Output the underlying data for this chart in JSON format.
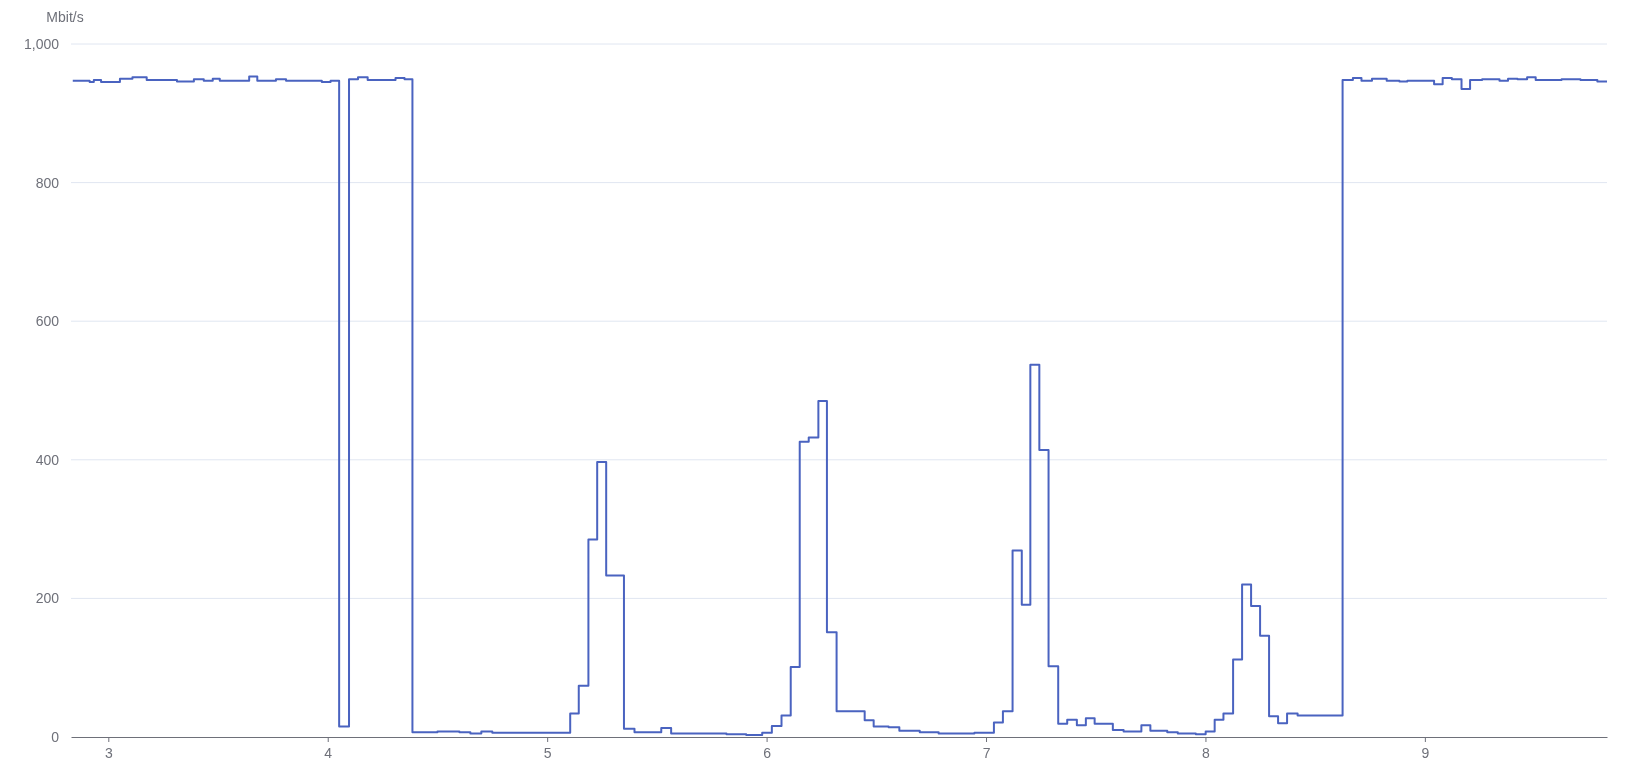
{
  "chart_data": {
    "type": "step",
    "ylabel": "Mbit/s",
    "xlim": [
      2.83,
      9.83
    ],
    "xticks": [
      3,
      4,
      5,
      6,
      7,
      8,
      9
    ],
    "ylim": [
      0,
      1000
    ],
    "yticks": [
      0,
      200,
      400,
      600,
      800,
      {
        "value": 1000,
        "label": "1,000"
      }
    ],
    "grid": "y",
    "marker": "none",
    "line_style": "solid",
    "series": [
      {
        "color": "#4a63c0",
        "x": [
          2.838,
          2.915,
          2.934,
          2.967,
          3.053,
          3.11,
          3.175,
          3.313,
          3.39,
          3.435,
          3.476,
          3.508,
          3.642,
          3.679,
          3.764,
          3.81,
          3.973,
          4.013,
          4.052,
          4.097,
          4.138,
          4.182,
          4.309,
          4.35,
          4.386,
          4.5,
          4.6,
          4.65,
          4.7,
          4.75,
          5.105,
          5.144,
          5.188,
          5.228,
          5.269,
          5.35,
          5.398,
          5.52,
          5.565,
          5.817,
          5.907,
          5.98,
          6.024,
          6.068,
          6.11,
          6.151,
          6.192,
          6.236,
          6.275,
          6.319,
          6.447,
          6.488,
          6.556,
          6.605,
          6.698,
          6.784,
          6.947,
          7.036,
          7.077,
          7.121,
          7.163,
          7.202,
          7.243,
          7.285,
          7.329,
          7.37,
          7.414,
          7.455,
          7.495,
          7.578,
          7.627,
          7.708,
          7.749,
          7.826,
          7.874,
          7.956,
          8.001,
          8.042,
          8.082,
          8.126,
          8.167,
          8.208,
          8.249,
          8.29,
          8.331,
          8.372,
          8.42,
          8.625,
          8.672,
          8.711,
          8.759,
          8.826,
          8.884,
          8.92,
          9.042,
          9.081,
          9.123,
          9.167,
          9.206,
          9.261,
          9.34,
          9.379,
          9.422,
          9.466,
          9.505,
          9.623,
          9.709,
          9.786,
          9.83
        ],
        "values": [
          947,
          945,
          948,
          945,
          950,
          952,
          948,
          946,
          949,
          947,
          950,
          947,
          953,
          947,
          949,
          947,
          945,
          947,
          15,
          949,
          952,
          948,
          951,
          949,
          7,
          8,
          7,
          5,
          8,
          6,
          34,
          74,
          285,
          397,
          233,
          12,
          7,
          13,
          5,
          4,
          3,
          6,
          16,
          31,
          101,
          426,
          432,
          485,
          151,
          37,
          24,
          15,
          14,
          9,
          7,
          5,
          6,
          21,
          37,
          269,
          191,
          537,
          414,
          102,
          19,
          25,
          17,
          27,
          19,
          10,
          8,
          17,
          9,
          7,
          5,
          4,
          8,
          25,
          34,
          112,
          220,
          189,
          146,
          30,
          20,
          34,
          31,
          948,
          951,
          947,
          950,
          947,
          946,
          947,
          942,
          951,
          949,
          935,
          948,
          949,
          947,
          950,
          949,
          952,
          948,
          949,
          948,
          946,
          946
        ]
      }
    ]
  }
}
